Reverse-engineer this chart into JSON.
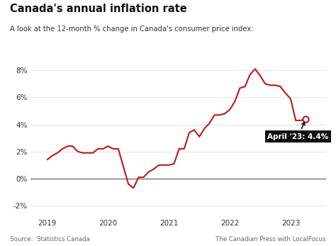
{
  "title": "Canada's annual inflation rate",
  "subtitle": "A look at the 12-month % change in Canada's consumer price index:",
  "source_left": "Source:  Statistics Canada",
  "source_right": "The Canadian Press with LocalFocus",
  "line_color": "#b71c1c",
  "background_color": "#ffffff",
  "annotation_text": "April '23: 4.4%",
  "ylim": [
    -2.8,
    9.2
  ],
  "yticks": [
    -2,
    0,
    2,
    4,
    6,
    8
  ],
  "xlim": [
    2018.72,
    2023.58
  ],
  "xticks": [
    2019,
    2020,
    2021,
    2022,
    2023
  ],
  "dates": [
    2019.0,
    2019.083,
    2019.167,
    2019.25,
    2019.333,
    2019.417,
    2019.5,
    2019.583,
    2019.667,
    2019.75,
    2019.833,
    2019.917,
    2020.0,
    2020.083,
    2020.167,
    2020.25,
    2020.333,
    2020.417,
    2020.5,
    2020.583,
    2020.667,
    2020.75,
    2020.833,
    2020.917,
    2021.0,
    2021.083,
    2021.167,
    2021.25,
    2021.333,
    2021.417,
    2021.5,
    2021.583,
    2021.667,
    2021.75,
    2021.833,
    2021.917,
    2022.0,
    2022.083,
    2022.167,
    2022.25,
    2022.333,
    2022.417,
    2022.5,
    2022.583,
    2022.667,
    2022.75,
    2022.833,
    2022.917,
    2023.0,
    2023.083,
    2023.167,
    2023.25
  ],
  "values": [
    1.4,
    1.7,
    1.9,
    2.2,
    2.4,
    2.4,
    2.0,
    1.9,
    1.9,
    1.9,
    2.2,
    2.2,
    2.4,
    2.2,
    2.2,
    0.9,
    -0.4,
    -0.7,
    0.1,
    0.1,
    0.5,
    0.7,
    1.0,
    1.0,
    1.0,
    1.1,
    2.2,
    2.2,
    3.4,
    3.6,
    3.1,
    3.7,
    4.1,
    4.7,
    4.7,
    4.8,
    5.1,
    5.7,
    6.7,
    6.8,
    7.7,
    8.1,
    7.6,
    7.0,
    6.9,
    6.9,
    6.8,
    6.3,
    5.9,
    4.3,
    4.3,
    4.4
  ]
}
